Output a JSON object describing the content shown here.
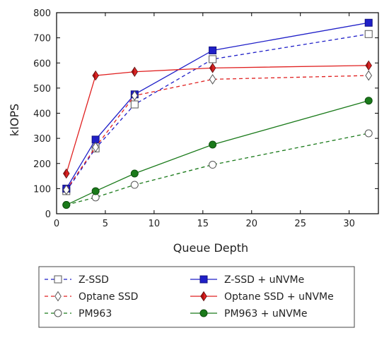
{
  "chart_data": {
    "type": "line",
    "xlabel": "Queue Depth",
    "ylabel": "kIOPS",
    "xlim": [
      0,
      33
    ],
    "ylim": [
      0,
      800
    ],
    "xticks": [
      0,
      5,
      10,
      15,
      20,
      25,
      30
    ],
    "yticks": [
      0,
      100,
      200,
      300,
      400,
      500,
      600,
      700,
      800
    ],
    "grid": false,
    "legend_position": "bottom",
    "x": [
      1,
      4,
      8,
      16,
      32
    ],
    "series": [
      {
        "name": "Z-SSD",
        "values": [
          90,
          260,
          435,
          615,
          715
        ],
        "color": "#1f1fc8",
        "dashed": true,
        "marker": "square",
        "filled": false
      },
      {
        "name": "Z-SSD + uNVMe",
        "values": [
          100,
          295,
          475,
          650,
          760
        ],
        "color": "#1f1fc8",
        "dashed": false,
        "marker": "square",
        "filled": true
      },
      {
        "name": "Optane SSD",
        "values": [
          95,
          265,
          470,
          535,
          550
        ],
        "color": "#e02020",
        "dashed": true,
        "marker": "diamond",
        "filled": false
      },
      {
        "name": "Optane SSD + uNVMe",
        "values": [
          160,
          550,
          565,
          580,
          590
        ],
        "color": "#e02020",
        "dashed": false,
        "marker": "diamond",
        "filled": true
      },
      {
        "name": "PM963",
        "values": [
          35,
          65,
          115,
          195,
          320
        ],
        "color": "#1a7a1a",
        "dashed": true,
        "marker": "circle",
        "filled": false
      },
      {
        "name": "PM963 + uNVMe",
        "values": [
          35,
          90,
          160,
          275,
          450
        ],
        "color": "#1a7a1a",
        "dashed": false,
        "marker": "circle",
        "filled": true
      }
    ]
  }
}
